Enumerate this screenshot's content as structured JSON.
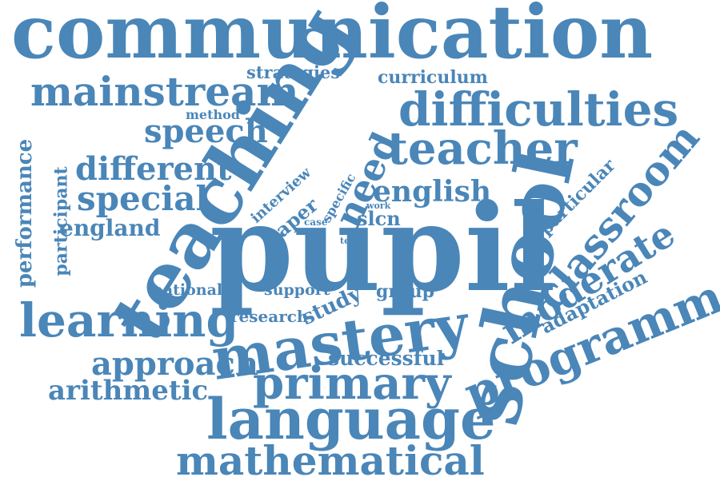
{
  "color": "#4a86b8",
  "words": {
    "communication": "communication",
    "mainstream": "mainstream",
    "strategies": "strategies",
    "curriculum": "curriculum",
    "difficulties": "difficulties",
    "method": "method",
    "speech": "speech",
    "teaching": "teaching",
    "teacher": "teacher",
    "performance": "performance",
    "participant": "participant",
    "different": "different",
    "special": "special",
    "england": "england",
    "need": "need",
    "english": "english",
    "interview": "interview",
    "paper": "paper",
    "specific": "specific",
    "work": "work",
    "case": "case",
    "slcn": "slcn",
    "test": "test",
    "pupil": "pupil",
    "school": "school",
    "classroom": "classroom",
    "particular": "particular",
    "moderate": "moderate",
    "adaptation": "adaptation",
    "programme": "programme",
    "national": "national",
    "support": "support",
    "study": "study",
    "group": "group",
    "learning": "learning",
    "research": "research",
    "mastery": "mastery",
    "approach": "approach",
    "successful": "successful",
    "arithmetic": "arithmetic",
    "primary": "primary",
    "language": "language",
    "mathematical": "mathematical"
  }
}
